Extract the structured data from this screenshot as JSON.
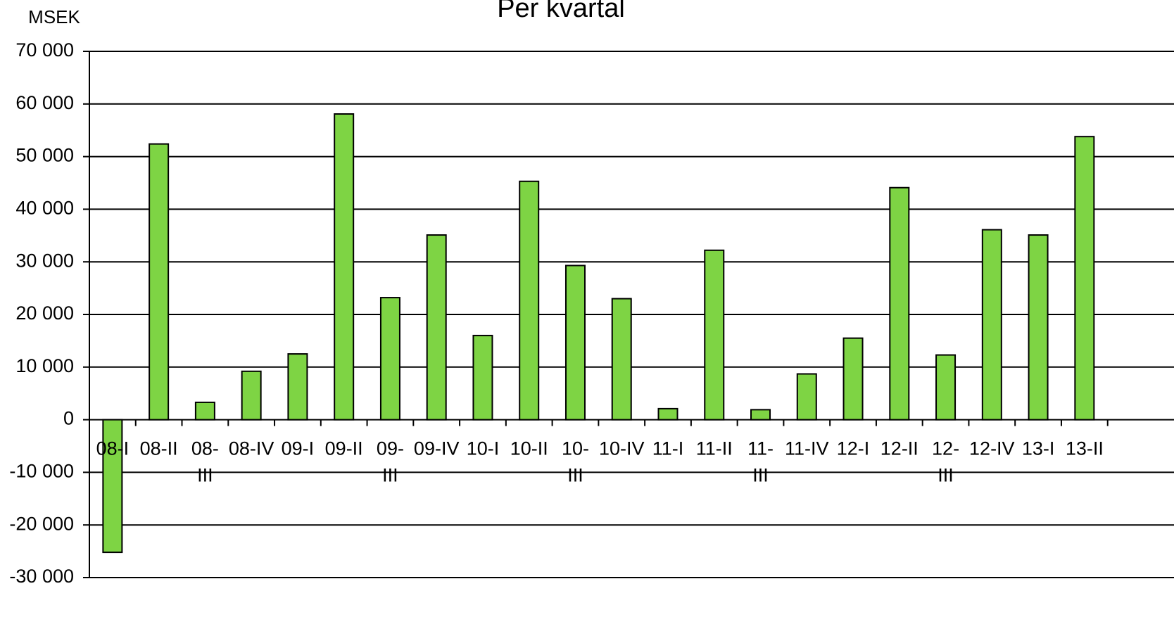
{
  "chart_data": {
    "type": "bar",
    "title": "Per kvartal",
    "y_label": "MSEK",
    "categories": [
      "08-I",
      "08-II",
      "08-III",
      "08-IV",
      "09-I",
      "09-II",
      "09-III",
      "09-IV",
      "10-I",
      "10-II",
      "10-III",
      "10-IV",
      "11-I",
      "11-II",
      "11-III",
      "11-IV",
      "12-I",
      "12-II",
      "12-III",
      "12-IV",
      "13-I",
      "13-II"
    ],
    "values": [
      -25200,
      52400,
      3300,
      9200,
      12500,
      58100,
      23200,
      35100,
      16000,
      45300,
      29300,
      23000,
      2100,
      32200,
      1900,
      8700,
      15500,
      44100,
      12300,
      36100,
      35100,
      53800
    ],
    "color": "#7ed444",
    "ylim": [
      -30000,
      70000
    ],
    "yticks": [
      {
        "value": -30000,
        "label": "-30 000"
      },
      {
        "value": -20000,
        "label": "-20 000"
      },
      {
        "value": -10000,
        "label": "-10 000"
      },
      0,
      {
        "value": 10000,
        "label": "10 000"
      },
      {
        "value": 20000,
        "label": "20 000"
      },
      {
        "value": 30000,
        "label": "30 000"
      },
      {
        "value": 40000,
        "label": "40 000"
      },
      {
        "value": 50000,
        "label": "50 000"
      },
      {
        "value": 60000,
        "label": "60 000"
      },
      {
        "value": 70000,
        "label": "70 000"
      }
    ],
    "grid": true
  }
}
